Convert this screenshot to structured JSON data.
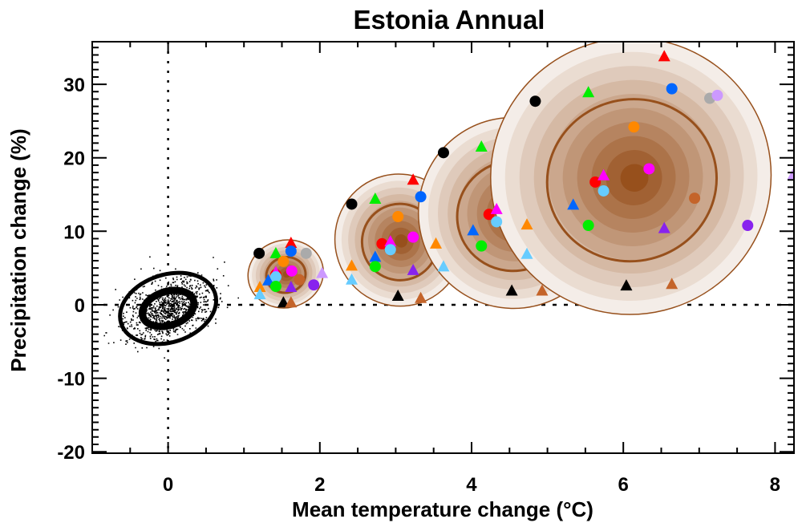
{
  "chart_data": {
    "type": "scatter",
    "title": "Estonia Annual",
    "xlabel": "Mean temperature change (°C)",
    "ylabel": "Precipitation change (%)",
    "xlim": [
      -1.0,
      8.25
    ],
    "ylim": [
      -20.2,
      35.8
    ],
    "x_ticks": [
      0,
      2,
      4,
      6,
      8
    ],
    "x_tick_labels": [
      "0",
      "2",
      "4",
      "6",
      "8"
    ],
    "y_ticks": [
      -20,
      -10,
      0,
      10,
      20,
      30
    ],
    "y_tick_labels": [
      "-20",
      "-10",
      "0",
      "10",
      "20",
      "30"
    ],
    "x_minor_step": 0.5,
    "y_minor_step": 1,
    "reference_lines": {
      "x": 0,
      "y": 0,
      "style": "dotted"
    },
    "grid": false,
    "colors": {
      "contour_line": "#97501c",
      "shade_outer": "#f4ede8",
      "shade_inner": "#97501c",
      "baseline": "#000000"
    },
    "baseline_cluster": {
      "center": [
        0.0,
        -0.5
      ],
      "contours": [
        {
          "rx": 0.65,
          "ry": 4.6,
          "tilt_deg": -18
        },
        {
          "rx": 0.35,
          "ry": 2.3,
          "tilt_deg": -18
        }
      ]
    },
    "distributions": [
      {
        "name": "cluster-1",
        "center": [
          1.55,
          4.2
        ],
        "rx": 0.5,
        "ry": 4.6,
        "inner_contour": [
          0.26,
          2.4
        ]
      },
      {
        "name": "cluster-2",
        "center": [
          3.05,
          8.8
        ],
        "rx": 0.85,
        "ry": 9.0,
        "inner_contour": [
          0.5,
          5.2
        ]
      },
      {
        "name": "cluster-3",
        "center": [
          4.55,
          12.5
        ],
        "rx": 1.25,
        "ry": 13.0,
        "inner_contour": [
          0.75,
          7.5
        ]
      },
      {
        "name": "cluster-4",
        "center": [
          6.1,
          17.5
        ],
        "rx": 1.85,
        "ry": 18.8,
        "inner_contour": [
          1.12,
          11.0
        ]
      }
    ],
    "series": [
      {
        "name": "black-circle",
        "marker": "circle",
        "color": "#000000",
        "points": [
          [
            1.2,
            7.0
          ],
          [
            2.42,
            13.7
          ],
          [
            3.63,
            20.7
          ],
          [
            4.84,
            27.7
          ]
        ]
      },
      {
        "name": "black-triangle",
        "marker": "triangle",
        "color": "#000000",
        "points": [
          [
            1.52,
            0.3
          ],
          [
            3.03,
            1.2
          ],
          [
            4.53,
            1.9
          ],
          [
            6.04,
            2.6
          ]
        ]
      },
      {
        "name": "brown-triangle",
        "marker": "triangle",
        "color": "#c4642a",
        "points": [
          [
            1.62,
            0.3
          ],
          [
            3.33,
            0.9
          ],
          [
            4.93,
            1.9
          ],
          [
            6.64,
            2.8
          ]
        ]
      },
      {
        "name": "green-triangle",
        "marker": "triangle",
        "color": "#00ee00",
        "points": [
          [
            1.42,
            7.0
          ],
          [
            2.73,
            14.4
          ],
          [
            4.13,
            21.5
          ],
          [
            5.54,
            28.9
          ]
        ]
      },
      {
        "name": "red-triangle",
        "marker": "triangle",
        "color": "#ff0000",
        "points": [
          [
            1.62,
            8.4
          ],
          [
            3.23,
            17.0
          ],
          [
            6.54,
            33.8
          ]
        ]
      },
      {
        "name": "blue-circle",
        "marker": "circle",
        "color": "#0066ff",
        "points": [
          [
            1.62,
            7.3
          ],
          [
            3.33,
            14.7
          ],
          [
            6.64,
            29.4
          ]
        ]
      },
      {
        "name": "grey-circle",
        "marker": "circle",
        "color": "#aaaaaa",
        "points": [
          [
            1.82,
            7.0
          ],
          [
            7.14,
            28.1
          ]
        ]
      },
      {
        "name": "lilac-circle",
        "marker": "circle",
        "color": "#cc99ff",
        "points": [
          [
            7.24,
            28.5
          ]
        ]
      },
      {
        "name": "orange-circle",
        "marker": "circle",
        "color": "#ff8800",
        "points": [
          [
            1.52,
            5.9
          ],
          [
            3.03,
            12.0
          ],
          [
            6.14,
            24.2
          ]
        ]
      },
      {
        "name": "magenta-circle",
        "marker": "circle",
        "color": "#ff00ff",
        "points": [
          [
            1.63,
            4.6
          ],
          [
            3.23,
            9.2
          ],
          [
            6.34,
            18.5
          ]
        ]
      },
      {
        "name": "red-circle",
        "marker": "circle",
        "color": "#ff0000",
        "points": [
          [
            1.42,
            4.1
          ],
          [
            2.82,
            8.3
          ],
          [
            4.23,
            12.3
          ],
          [
            5.63,
            16.7
          ]
        ]
      },
      {
        "name": "magenta-triangle",
        "marker": "triangle",
        "color": "#ff00ff",
        "points": [
          [
            1.42,
            4.4
          ],
          [
            2.93,
            8.6
          ],
          [
            4.33,
            13.0
          ],
          [
            5.74,
            17.6
          ]
        ]
      },
      {
        "name": "cyan-circle",
        "marker": "circle",
        "color": "#66ccff",
        "points": [
          [
            1.42,
            3.8
          ],
          [
            2.93,
            7.5
          ],
          [
            4.33,
            11.3
          ],
          [
            5.74,
            15.5
          ]
        ]
      },
      {
        "name": "brown-circle",
        "marker": "circle",
        "color": "#c4642a",
        "points": [
          [
            1.73,
            3.4
          ],
          [
            6.94,
            14.5
          ]
        ]
      },
      {
        "name": "blue-triangle",
        "marker": "triangle",
        "color": "#0066ff",
        "points": [
          [
            1.32,
            3.3
          ],
          [
            2.73,
            6.5
          ],
          [
            4.02,
            10.1
          ],
          [
            5.34,
            13.6
          ]
        ]
      },
      {
        "name": "green-circle",
        "marker": "circle",
        "color": "#00ee00",
        "points": [
          [
            1.42,
            2.5
          ],
          [
            2.73,
            5.2
          ],
          [
            4.13,
            8.0
          ],
          [
            5.54,
            10.8
          ]
        ]
      },
      {
        "name": "purple-triangle",
        "marker": "triangle",
        "color": "#8822ee",
        "points": [
          [
            1.62,
            2.4
          ],
          [
            3.23,
            4.7
          ],
          [
            6.54,
            10.4
          ]
        ]
      },
      {
        "name": "purple-circle",
        "marker": "circle",
        "color": "#8822ee",
        "points": [
          [
            1.92,
            2.7
          ],
          [
            7.64,
            10.8
          ]
        ]
      },
      {
        "name": "orange-triangle",
        "marker": "triangle",
        "color": "#ff8800",
        "points": [
          [
            1.21,
            2.4
          ],
          [
            2.42,
            5.3
          ],
          [
            3.53,
            8.3
          ],
          [
            4.73,
            10.9
          ]
        ]
      },
      {
        "name": "cyan-triangle",
        "marker": "triangle",
        "color": "#66ccff",
        "points": [
          [
            1.21,
            1.4
          ],
          [
            2.42,
            3.4
          ],
          [
            3.63,
            5.2
          ],
          [
            4.73,
            6.9
          ]
        ]
      },
      {
        "name": "lilac-triangle",
        "marker": "triangle",
        "color": "#cc99ff",
        "points": [
          [
            2.03,
            4.3
          ],
          [
            8.24,
            17.7
          ]
        ]
      }
    ]
  }
}
